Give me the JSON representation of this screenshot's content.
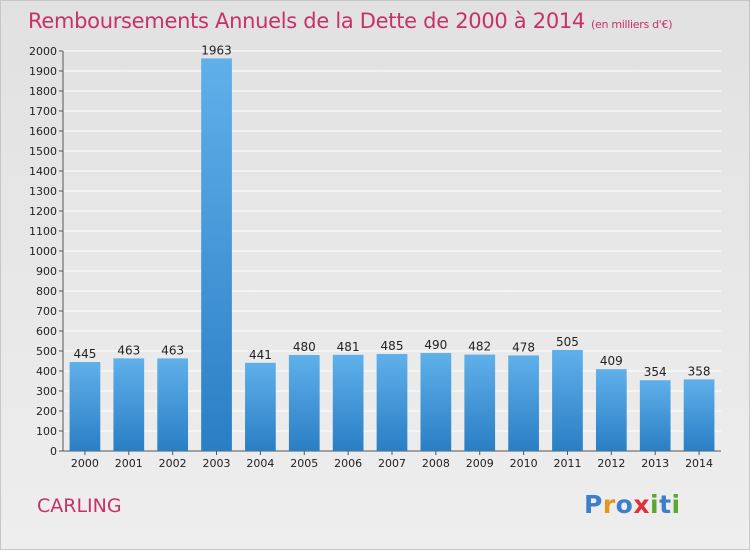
{
  "title": "Remboursements Annuels de la Dette de 2000 à 2014",
  "unit_note": "(en milliers d'€)",
  "commune": "CARLING",
  "logo": {
    "text": "Proxiti",
    "letter_colors": [
      "#3d7fc9",
      "#e8951f",
      "#3d7fc9",
      "#e0303a",
      "#5aa832",
      "#3d7fc9",
      "#5aa832"
    ]
  },
  "colors": {
    "bar_top": "#5fb0ea",
    "bar_bottom": "#2a7ec4",
    "grid": "#ffffff",
    "text": "#222222",
    "accent": "#c8306a"
  },
  "chart_data": {
    "type": "bar",
    "categories": [
      "2000",
      "2001",
      "2002",
      "2003",
      "2004",
      "2005",
      "2006",
      "2007",
      "2008",
      "2009",
      "2010",
      "2011",
      "2012",
      "2013",
      "2014"
    ],
    "values": [
      445,
      463,
      463,
      1963,
      441,
      480,
      481,
      485,
      490,
      482,
      478,
      505,
      409,
      354,
      358
    ],
    "ylim": [
      0,
      2000
    ],
    "ytick_step": 100,
    "grid": true,
    "xlabel": "",
    "ylabel": ""
  }
}
